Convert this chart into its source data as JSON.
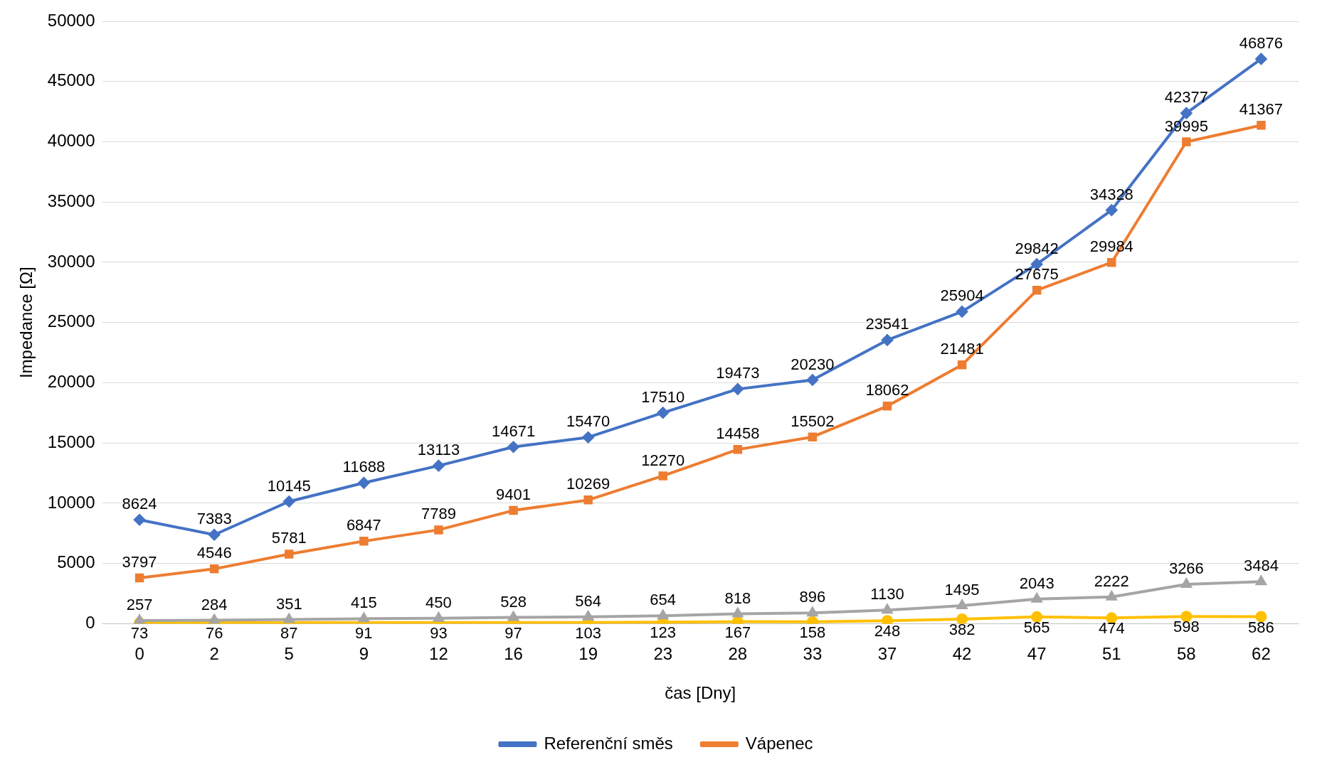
{
  "chart_data": {
    "type": "line",
    "xlabel": "čas [Dny]",
    "ylabel": "Impedance [Ω]",
    "categories": [
      "0",
      "2",
      "5",
      "9",
      "12",
      "16",
      "19",
      "23",
      "28",
      "33",
      "37",
      "42",
      "47",
      "51",
      "58",
      "62"
    ],
    "ylim": [
      0,
      50000
    ],
    "yticks": [
      0,
      5000,
      10000,
      15000,
      20000,
      25000,
      30000,
      35000,
      40000,
      45000,
      50000
    ],
    "grid": "y",
    "legend": "bottom",
    "data_labels": true,
    "line_style": "solid",
    "series": [
      {
        "name": "Referenční směs",
        "color": "#4472c4",
        "marker": "diamond",
        "values": [
          8624,
          7383,
          10145,
          11688,
          13113,
          14671,
          15470,
          17510,
          19473,
          20230,
          23541,
          25904,
          29842,
          34328,
          42377,
          46876
        ]
      },
      {
        "name": "Vápenec",
        "color": "#ed7d31",
        "marker": "square",
        "values": [
          3797,
          4546,
          5781,
          6847,
          7789,
          9401,
          10269,
          12270,
          14458,
          15502,
          18062,
          21481,
          27675,
          29984,
          39995,
          41367
        ]
      },
      {
        "color": "#a5a5a5",
        "marker": "triangle",
        "values": [
          257,
          284,
          351,
          415,
          450,
          528,
          564,
          654,
          818,
          896,
          1130,
          1495,
          2043,
          2222,
          3266,
          3484
        ]
      },
      {
        "color": "#ffc000",
        "marker": "circle",
        "values": [
          73,
          76,
          87,
          91,
          93,
          97,
          103,
          123,
          167,
          158,
          248,
          382,
          565,
          474,
          598,
          586
        ]
      }
    ]
  }
}
